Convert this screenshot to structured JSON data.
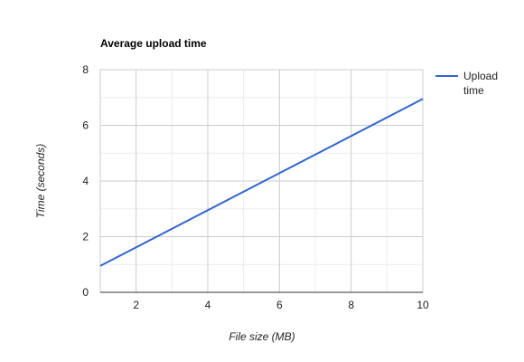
{
  "chart_data": {
    "type": "line",
    "title": "Average upload time",
    "xlabel": "File size (MB)",
    "ylabel": "Time (seconds)",
    "xlim": [
      1,
      10
    ],
    "ylim": [
      0,
      8
    ],
    "x_ticks": [
      2,
      4,
      6,
      8,
      10
    ],
    "y_ticks": [
      0,
      2,
      4,
      6,
      8
    ],
    "grid": true,
    "legend_position": "right",
    "series": [
      {
        "name": "Upload time",
        "legend_lines": [
          "Upload",
          "time"
        ],
        "color": "#3366cc",
        "x": [
          1,
          10
        ],
        "y": [
          0.95,
          6.95
        ]
      }
    ]
  }
}
